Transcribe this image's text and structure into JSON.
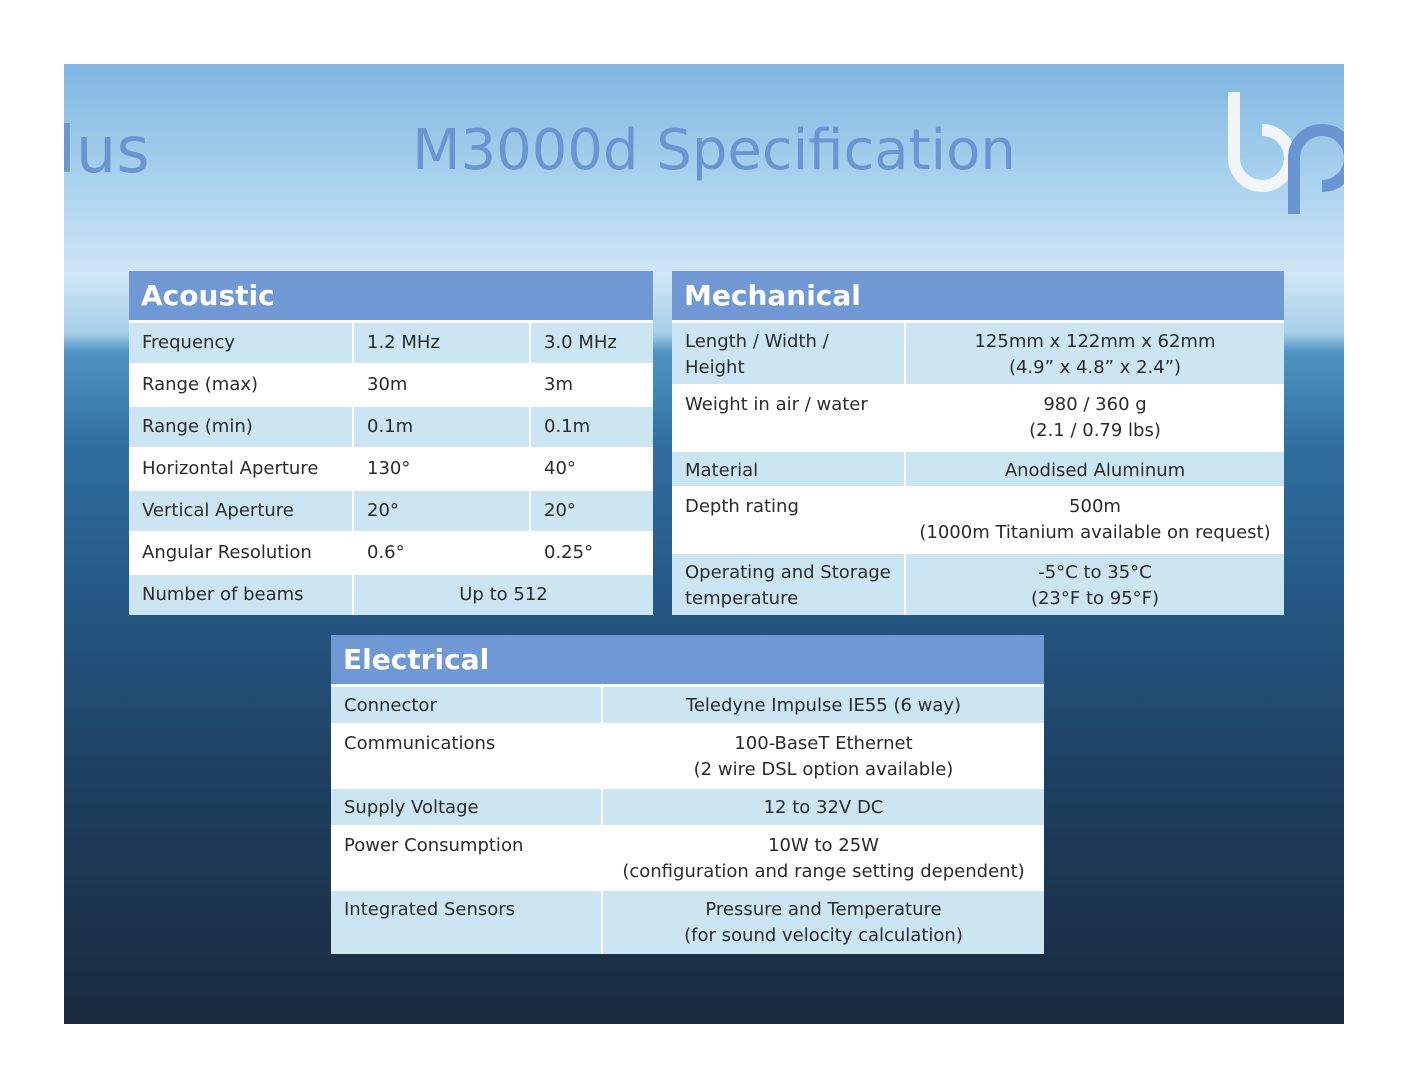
{
  "header": {
    "logo_text": "lus",
    "title": "M3000d Specification"
  },
  "tables": [
    {
      "title": "Acoustic",
      "rows": [
        [
          "Frequency",
          "1.2 MHz",
          "3.0 MHz"
        ],
        [
          "Range (max)",
          "30m",
          "3m"
        ],
        [
          "Range (min)",
          "0.1m",
          "0.1m"
        ],
        [
          "Horizontal Aperture",
          "130°",
          "40°"
        ],
        [
          "Vertical Aperture",
          "20°",
          "20°"
        ],
        [
          "Angular Resolution",
          "0.6°",
          "0.25°"
        ],
        [
          "Number of beams",
          "Up to 512"
        ]
      ]
    },
    {
      "title": "Mechanical",
      "rows": [
        [
          "Length / Width / Height",
          [
            "125mm x 122mm x 62mm",
            "(4.9” x 4.8” x 2.4”)"
          ]
        ],
        [
          "Weight in air / water",
          [
            "980 / 360 g",
            "(2.1 / 0.79 lbs)"
          ]
        ],
        [
          "Material",
          "Anodised Aluminum"
        ],
        [
          "Depth rating",
          [
            "500m",
            "(1000m Titanium available on request)"
          ]
        ],
        [
          [
            "Operating and Storage",
            "temperature"
          ],
          [
            "-5°C to 35°C",
            "(23°F to 95°F)"
          ]
        ]
      ]
    },
    {
      "title": "Electrical",
      "rows": [
        [
          "Connector",
          "Teledyne Impulse IE55 (6 way)"
        ],
        [
          "Communications",
          [
            "100-BaseT Ethernet",
            "(2 wire DSL option available)"
          ]
        ],
        [
          "Supply Voltage",
          "12 to 32V DC"
        ],
        [
          "Power Consumption",
          [
            "10W to 25W",
            "(configuration and range setting dependent)"
          ]
        ],
        [
          "Integrated Sensors",
          [
            "Pressure and Temperature",
            "(for sound velocity calculation)"
          ]
        ]
      ]
    }
  ]
}
